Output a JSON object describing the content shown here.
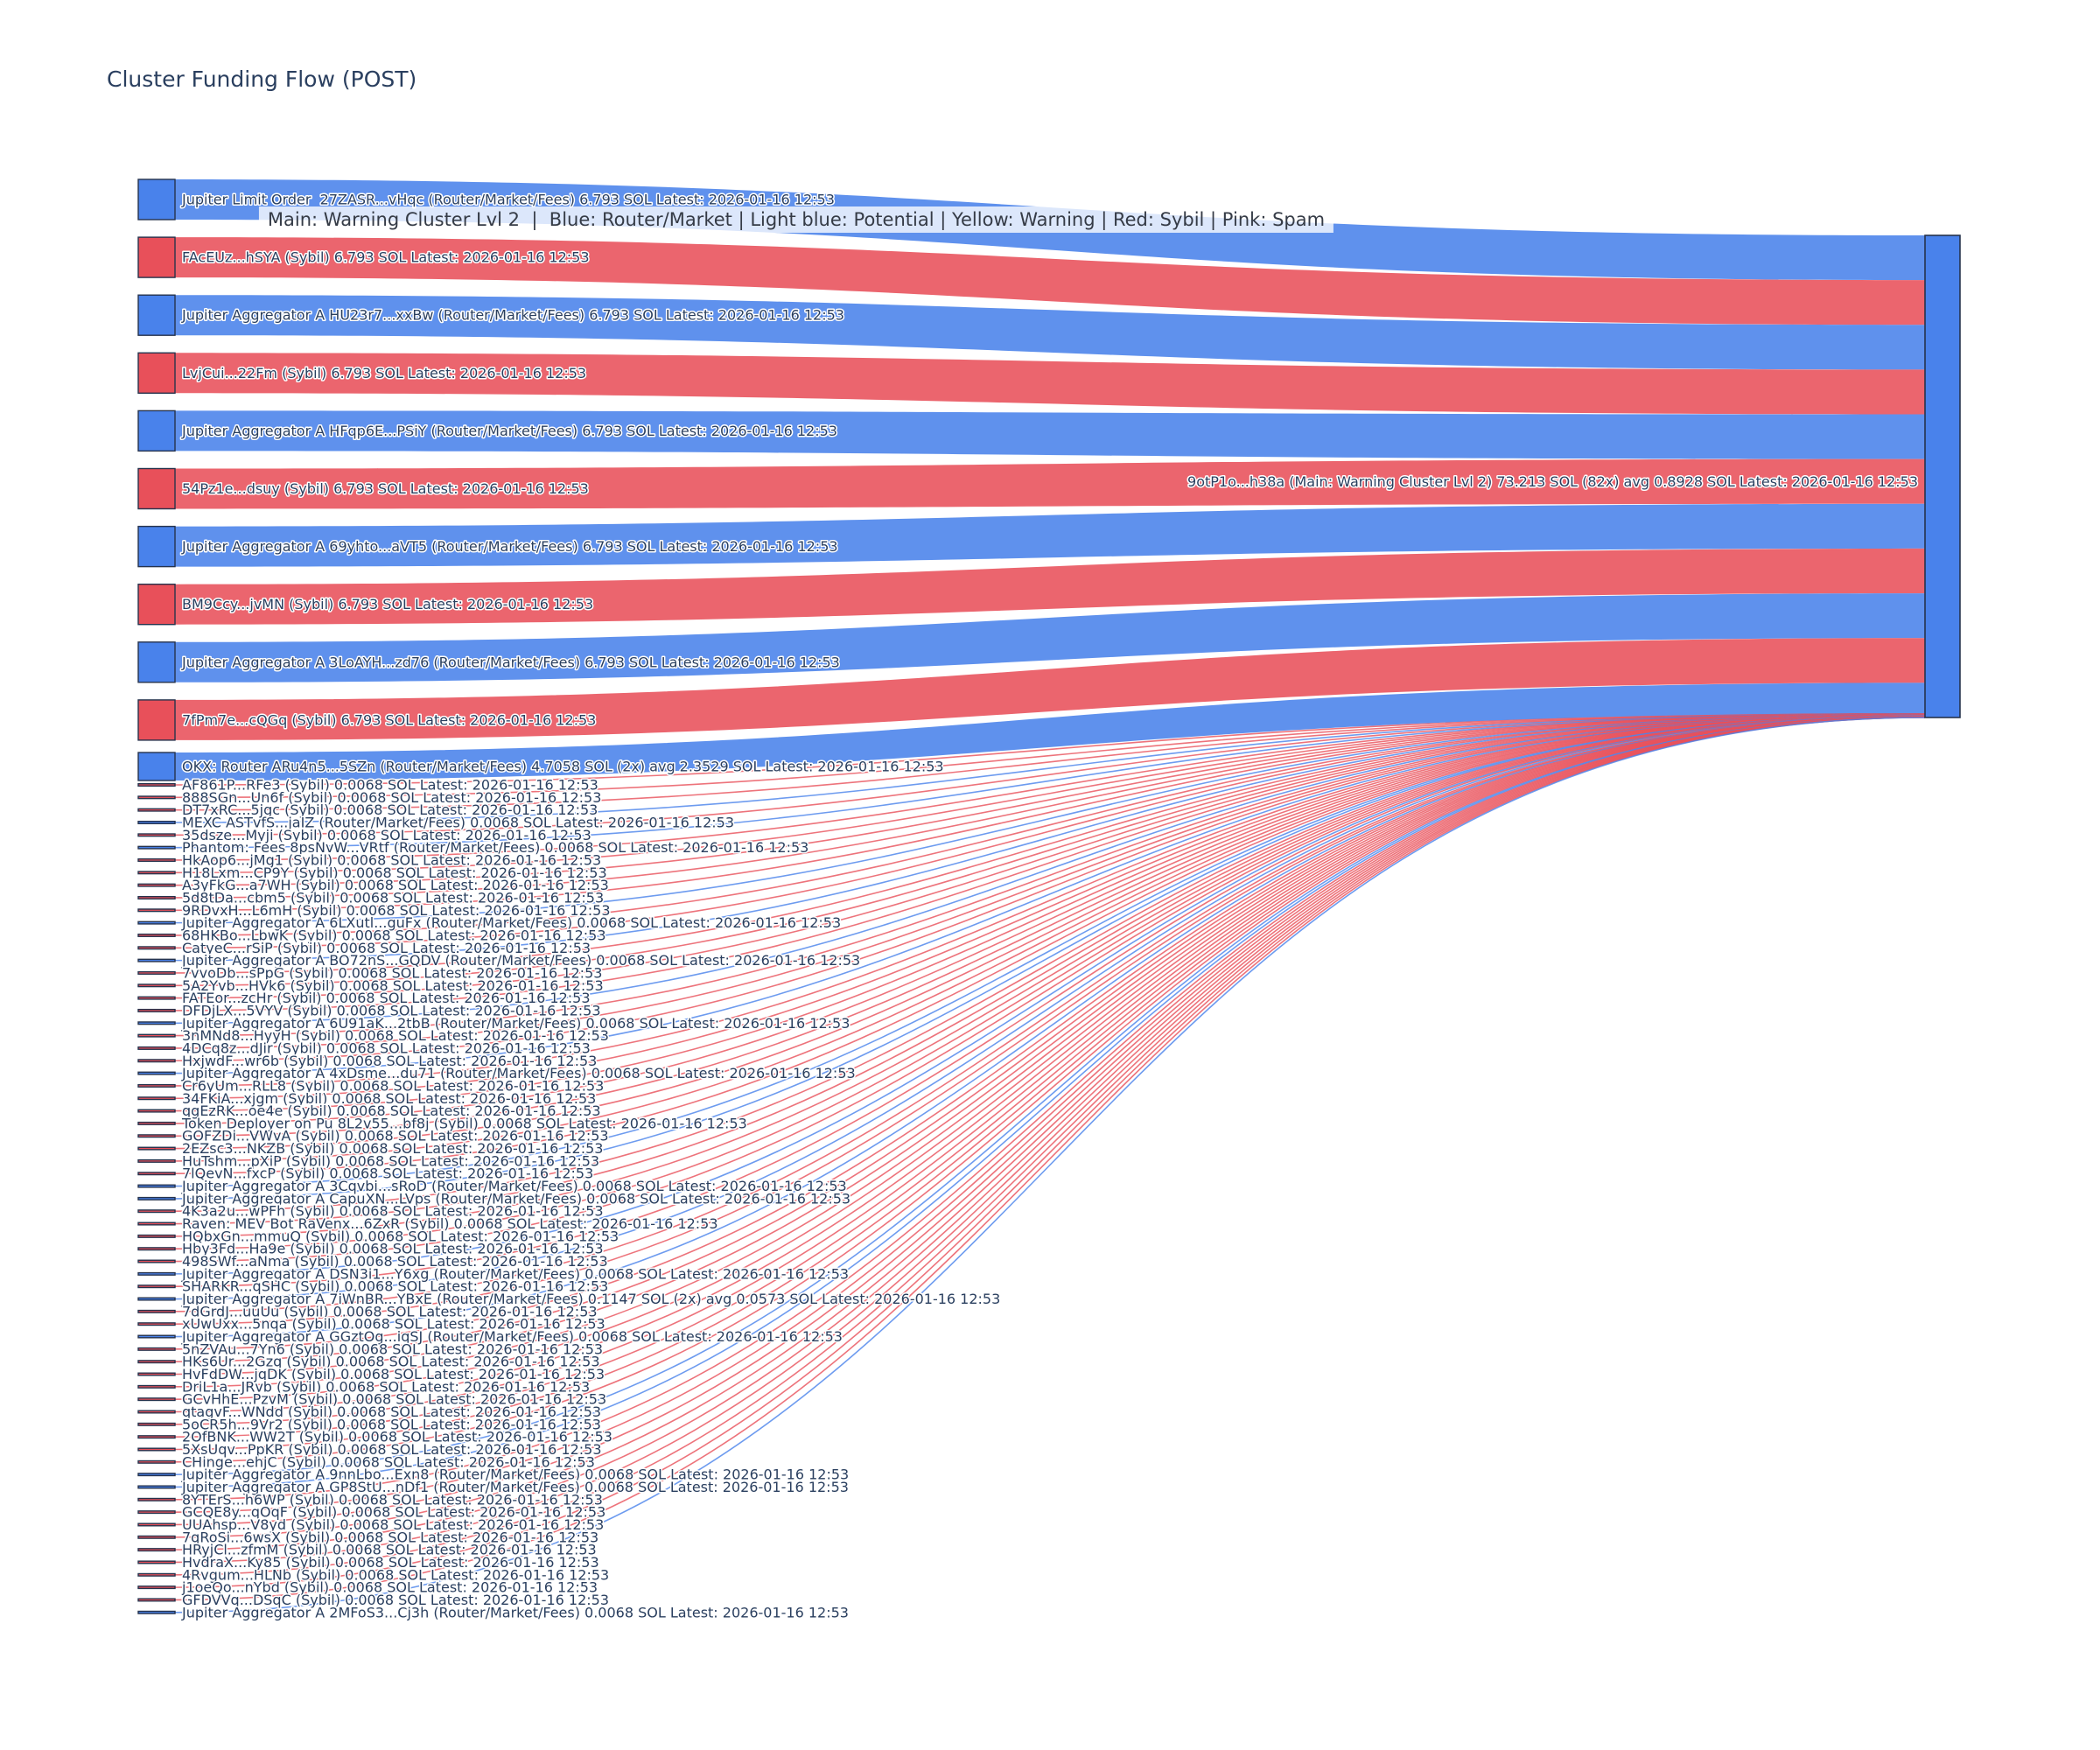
{
  "title": "Cluster Funding Flow (POST)",
  "annotation": "Main: Warning Cluster Lvl 2  |  Blue: Router/Market | Light blue: Potential | Yellow: Warning | Red: Sybil | Pink: Spam",
  "colors": {
    "router": "#4982eb",
    "sybil": "#e8505a",
    "node_border": "#26334d",
    "label_text": "#2a3f5f",
    "title_text": "#2a3f5f",
    "annotation_text": "#353b46",
    "annotation_bg": "rgba(255,255,255,0.78)"
  },
  "chart_data": {
    "type": "sankey",
    "unit": "SOL",
    "target": {
      "label": "9otP1o...h38a (Main: Warning Cluster Lvl 2) 73.213 SOL (82x) avg 0.8928 SOL Latest: 2026-01-16 12:53",
      "value": 73.213,
      "tx_count": 82,
      "avg": 0.8928,
      "latest": "2026-01-16 12:53",
      "type": "router"
    },
    "sources": [
      {
        "label": "Jupiter Limit Order  27ZASR...vHqc (Router/Market/Fees) 6.793 SOL Latest: 2026-01-16 12:53",
        "type": "router",
        "value": 6.793
      },
      {
        "label": "FAcEUz...hSYA (Sybil) 6.793 SOL Latest: 2026-01-16 12:53",
        "type": "sybil",
        "value": 6.793
      },
      {
        "label": "Jupiter Aggregator A HU23r7...xxBw (Router/Market/Fees) 6.793 SOL Latest: 2026-01-16 12:53",
        "type": "router",
        "value": 6.793
      },
      {
        "label": "LvjCui...22Fm (Sybil) 6.793 SOL Latest: 2026-01-16 12:53",
        "type": "sybil",
        "value": 6.793
      },
      {
        "label": "Jupiter Aggregator A HFqp6E...PSiY (Router/Market/Fees) 6.793 SOL Latest: 2026-01-16 12:53",
        "type": "router",
        "value": 6.793
      },
      {
        "label": "54Pz1e...dsuy (Sybil) 6.793 SOL Latest: 2026-01-16 12:53",
        "type": "sybil",
        "value": 6.793
      },
      {
        "label": "Jupiter Aggregator A 69yhto...aVT5 (Router/Market/Fees) 6.793 SOL Latest: 2026-01-16 12:53",
        "type": "router",
        "value": 6.793
      },
      {
        "label": "BM9Ccy...jvMN (Sybil) 6.793 SOL Latest: 2026-01-16 12:53",
        "type": "sybil",
        "value": 6.793
      },
      {
        "label": "Jupiter Aggregator A 3LoAYH...zd76 (Router/Market/Fees) 6.793 SOL Latest: 2026-01-16 12:53",
        "type": "router",
        "value": 6.793
      },
      {
        "label": "7fPm7e...cQGq (Sybil) 6.793 SOL Latest: 2026-01-16 12:53",
        "type": "sybil",
        "value": 6.793
      },
      {
        "label": "OKX: Router ARu4n5...5SZn (Router/Market/Fees) 4.7058 SOL (2x) avg 2.3529 SOL Latest: 2026-01-16 12:53",
        "type": "router",
        "value": 4.7058
      },
      {
        "label": "AF861P...RFe3 (Sybil) 0.0068 SOL Latest: 2026-01-16 12:53",
        "type": "sybil",
        "value": 0.0068
      },
      {
        "label": "888SGn...Un6f (Sybil) 0.0068 SOL Latest: 2026-01-16 12:53",
        "type": "sybil",
        "value": 0.0068
      },
      {
        "label": "DT7xRC...5jgc (Sybil) 0.0068 SOL Latest: 2026-01-16 12:53",
        "type": "sybil",
        "value": 0.0068
      },
      {
        "label": "MEXC ASTvfS...jaIZ (Router/Market/Fees) 0.0068 SOL Latest: 2026-01-16 12:53",
        "type": "router",
        "value": 0.0068
      },
      {
        "label": "35dsze...Myji (Sybil) 0.0068 SOL Latest: 2026-01-16 12:53",
        "type": "sybil",
        "value": 0.0068
      },
      {
        "label": "Phantom: Fees 8psNvW...VRtf (Router/Market/Fees) 0.0068 SOL Latest: 2026-01-16 12:53",
        "type": "router",
        "value": 0.0068
      },
      {
        "label": "HkAop6...jMg1 (Sybil) 0.0068 SOL Latest: 2026-01-16 12:53",
        "type": "sybil",
        "value": 0.0068
      },
      {
        "label": "H18Lxm...CP9Y (Sybil) 0.0068 SOL Latest: 2026-01-16 12:53",
        "type": "sybil",
        "value": 0.0068
      },
      {
        "label": "A3yFkG...a7WH (Sybil) 0.0068 SOL Latest: 2026-01-16 12:53",
        "type": "sybil",
        "value": 0.0068
      },
      {
        "label": "5d8tDa...cbm5 (Sybil) 0.0068 SOL Latest: 2026-01-16 12:53",
        "type": "sybil",
        "value": 0.0068
      },
      {
        "label": "9RDvxH...L6mH (Sybil) 0.0068 SOL Latest: 2026-01-16 12:53",
        "type": "sybil",
        "value": 0.0068
      },
      {
        "label": "Jupiter Aggregator A 6LXutl...guFx (Router/Market/Fees) 0.0068 SOL Latest: 2026-01-16 12:53",
        "type": "router",
        "value": 0.0068
      },
      {
        "label": "68HKBo...LbwK (Sybil) 0.0068 SOL Latest: 2026-01-16 12:53",
        "type": "sybil",
        "value": 0.0068
      },
      {
        "label": "CatyeC...rSiP (Sybil) 0.0068 SOL Latest: 2026-01-16 12:53",
        "type": "sybil",
        "value": 0.0068
      },
      {
        "label": "Jupiter Aggregator A BO72nS...GQDV (Router/Market/Fees) 0.0068 SOL Latest: 2026-01-16 12:53",
        "type": "router",
        "value": 0.0068
      },
      {
        "label": "7vvoDb...sPpG (Sybil) 0.0068 SOL Latest: 2026-01-16 12:53",
        "type": "sybil",
        "value": 0.0068
      },
      {
        "label": "5A2Yvb...HVk6 (Sybil) 0.0068 SOL Latest: 2026-01-16 12:53",
        "type": "sybil",
        "value": 0.0068
      },
      {
        "label": "FATEor...zcHr (Sybil) 0.0068 SOL Latest: 2026-01-16 12:53",
        "type": "sybil",
        "value": 0.0068
      },
      {
        "label": "DFDjLX...5VYV (Sybil) 0.0068 SOL Latest: 2026-01-16 12:53",
        "type": "sybil",
        "value": 0.0068
      },
      {
        "label": "Jupiter Aggregator A 6U91aK...2tbB (Router/Market/Fees) 0.0068 SOL Latest: 2026-01-16 12:53",
        "type": "router",
        "value": 0.0068
      },
      {
        "label": "3nMNd8...HyyH (Sybil) 0.0068 SOL Latest: 2026-01-16 12:53",
        "type": "sybil",
        "value": 0.0068
      },
      {
        "label": "4DCq8z...dJir (Sybil) 0.0068 SOL Latest: 2026-01-16 12:53",
        "type": "sybil",
        "value": 0.0068
      },
      {
        "label": "HxjwdF...wr6b (Sybil) 0.0068 SOL Latest: 2026-01-16 12:53",
        "type": "sybil",
        "value": 0.0068
      },
      {
        "label": "Jupiter Aggregator A 4xDsme...du71 (Router/Market/Fees) 0.0068 SOL Latest: 2026-01-16 12:53",
        "type": "router",
        "value": 0.0068
      },
      {
        "label": "Cr6yUm...RLL8 (Sybil) 0.0068 SOL Latest: 2026-01-16 12:53",
        "type": "sybil",
        "value": 0.0068
      },
      {
        "label": "34FKiA...xjgm (Sybil) 0.0068 SOL Latest: 2026-01-16 12:53",
        "type": "sybil",
        "value": 0.0068
      },
      {
        "label": "qgEzRK...oe4e (Sybil) 0.0068 SOL Latest: 2026-01-16 12:53",
        "type": "sybil",
        "value": 0.0068
      },
      {
        "label": "Token Deployer on Pu 8L2v55...bf8j (Sybil) 0.0068 SOL Latest: 2026-01-16 12:53",
        "type": "sybil",
        "value": 0.0068
      },
      {
        "label": "GOFZDi...VWvA (Sybil) 0.0068 SOL Latest: 2026-01-16 12:53",
        "type": "sybil",
        "value": 0.0068
      },
      {
        "label": "2EZsc3...NKZB (Sybil) 0.0068 SOL Latest: 2026-01-16 12:53",
        "type": "sybil",
        "value": 0.0068
      },
      {
        "label": "HuTshm...pXiP (Sybil) 0.0068 SOL Latest: 2026-01-16 12:53",
        "type": "sybil",
        "value": 0.0068
      },
      {
        "label": "7lQevN...fxcP (Sybil) 0.0068 SOL Latest: 2026-01-16 12:53",
        "type": "sybil",
        "value": 0.0068
      },
      {
        "label": "Jupiter Aggregator A 3Cqvbi...sRoD (Router/Market/Fees) 0.0068 SOL Latest: 2026-01-16 12:53",
        "type": "router",
        "value": 0.0068
      },
      {
        "label": "Jupiter Aggregator A CapuXN...LVps (Router/Market/Fees) 0.0068 SOL Latest: 2026-01-16 12:53",
        "type": "router",
        "value": 0.0068
      },
      {
        "label": "4K3a2u...wPFh (Sybil) 0.0068 SOL Latest: 2026-01-16 12:53",
        "type": "sybil",
        "value": 0.0068
      },
      {
        "label": "Raven: MEV Bot RaVenx...6ZxR (Sybil) 0.0068 SOL Latest: 2026-01-16 12:53",
        "type": "sybil",
        "value": 0.0068
      },
      {
        "label": "HQbxGn...mmuQ (Sybil) 0.0068 SOL Latest: 2026-01-16 12:53",
        "type": "sybil",
        "value": 0.0068
      },
      {
        "label": "Hby3Fd...Ha9e (Sybil) 0.0068 SOL Latest: 2026-01-16 12:53",
        "type": "sybil",
        "value": 0.0068
      },
      {
        "label": "498SWf...aNma (Sybil) 0.0068 SOL Latest: 2026-01-16 12:53",
        "type": "sybil",
        "value": 0.0068
      },
      {
        "label": "Jupiter Aggregator A DSN3i1...Y6xg (Router/Market/Fees) 0.0068 SOL Latest: 2026-01-16 12:53",
        "type": "router",
        "value": 0.0068
      },
      {
        "label": "SHARKR...qSHC (Sybil) 0.0068 SOL Latest: 2026-01-16 12:53",
        "type": "sybil",
        "value": 0.0068
      },
      {
        "label": "Jupiter Aggregator A 7iWnBR...YBxE (Router/Market/Fees) 0.1147 SOL (2x) avg 0.0573 SOL Latest: 2026-01-16 12:53",
        "type": "router",
        "value": 0.1147
      },
      {
        "label": "7dGrdJ...uuUu (Sybil) 0.0068 SOL Latest: 2026-01-16 12:53",
        "type": "sybil",
        "value": 0.0068
      },
      {
        "label": "xUwUxx...5nqa (Sybil) 0.0068 SOL Latest: 2026-01-16 12:53",
        "type": "sybil",
        "value": 0.0068
      },
      {
        "label": "Jupiter Aggregator A GGztOg...iqSJ (Router/Market/Fees) 0.0068 SOL Latest: 2026-01-16 12:53",
        "type": "router",
        "value": 0.0068
      },
      {
        "label": "5nZVAu...7Yn6 (Sybil) 0.0068 SOL Latest: 2026-01-16 12:53",
        "type": "sybil",
        "value": 0.0068
      },
      {
        "label": "HKs6Ur...2Gzq (Sybil) 0.0068 SOL Latest: 2026-01-16 12:53",
        "type": "sybil",
        "value": 0.0068
      },
      {
        "label": "HvFdDW...jqDK (Sybil) 0.0068 SOL Latest: 2026-01-16 12:53",
        "type": "sybil",
        "value": 0.0068
      },
      {
        "label": "DriL1a...JRvb (Sybil) 0.0068 SOL Latest: 2026-01-16 12:53",
        "type": "sybil",
        "value": 0.0068
      },
      {
        "label": "GCvHhE...PzvM (Sybil) 0.0068 SOL Latest: 2026-01-16 12:53",
        "type": "sybil",
        "value": 0.0068
      },
      {
        "label": "qtagvF...WNdd (Sybil) 0.0068 SOL Latest: 2026-01-16 12:53",
        "type": "sybil",
        "value": 0.0068
      },
      {
        "label": "5oCR5h...9Vr2 (Sybil) 0.0068 SOL Latest: 2026-01-16 12:53",
        "type": "sybil",
        "value": 0.0068
      },
      {
        "label": "2OfBNK...WW2T (Sybil) 0.0068 SOL Latest: 2026-01-16 12:53",
        "type": "sybil",
        "value": 0.0068
      },
      {
        "label": "5XsUqv...PpKR (Sybil) 0.0068 SOL Latest: 2026-01-16 12:53",
        "type": "sybil",
        "value": 0.0068
      },
      {
        "label": "CHinge...ehjC (Sybil) 0.0068 SOL Latest: 2026-01-16 12:53",
        "type": "sybil",
        "value": 0.0068
      },
      {
        "label": "Jupiter Aggregator A 9nnLbo...Exn8 (Router/Market/Fees) 0.0068 SOL Latest: 2026-01-16 12:53",
        "type": "router",
        "value": 0.0068
      },
      {
        "label": "Jupiter Aggregator A GP8StU...nDf1 (Router/Market/Fees) 0.0068 SOL Latest: 2026-01-16 12:53",
        "type": "router",
        "value": 0.0068
      },
      {
        "label": "8YTErS...h6WP (Sybil) 0.0068 SOL Latest: 2026-01-16 12:53",
        "type": "sybil",
        "value": 0.0068
      },
      {
        "label": "GCQE8y...qOqF (Sybil) 0.0068 SOL Latest: 2026-01-16 12:53",
        "type": "sybil",
        "value": 0.0068
      },
      {
        "label": "UUAhsp...V8yd (Sybil) 0.0068 SOL Latest: 2026-01-16 12:53",
        "type": "sybil",
        "value": 0.0068
      },
      {
        "label": "7qRoSi...6wsX (Sybil) 0.0068 SOL Latest: 2026-01-16 12:53",
        "type": "sybil",
        "value": 0.0068
      },
      {
        "label": "HRyjCl...zfmM (Sybil) 0.0068 SOL Latest: 2026-01-16 12:53",
        "type": "sybil",
        "value": 0.0068
      },
      {
        "label": "HvdraX...Ky85 (Sybil) 0.0068 SOL Latest: 2026-01-16 12:53",
        "type": "sybil",
        "value": 0.0068
      },
      {
        "label": "4Rvgum...HLNb (Sybil) 0.0068 SOL Latest: 2026-01-16 12:53",
        "type": "sybil",
        "value": 0.0068
      },
      {
        "label": "j1oeQo...nYbd (Sybil) 0.0068 SOL Latest: 2026-01-16 12:53",
        "type": "sybil",
        "value": 0.0068
      },
      {
        "label": "GFDVVq...DSqC (Sybil) 0.0068 SOL Latest: 2026-01-16 12:53",
        "type": "sybil",
        "value": 0.0068
      },
      {
        "label": "Jupiter Aggregator A 2MFoS3...Cj3h (Router/Market/Fees) 0.0068 SOL Latest: 2026-01-16 12:53",
        "type": "router",
        "value": 0.0068
      }
    ]
  }
}
